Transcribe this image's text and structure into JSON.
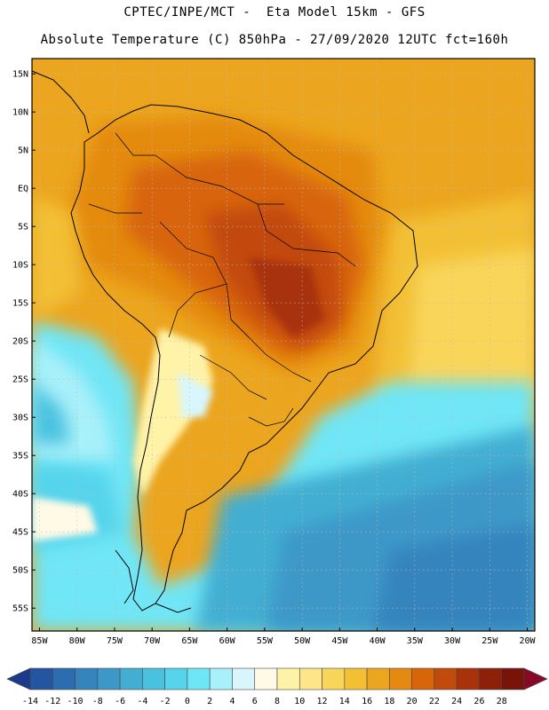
{
  "header": {
    "line1": "CPTEC/INPE/MCT -  Eta Model 15km - GFS",
    "line2": "Absolute Temperature (C) 850hPa - 27/09/2020 12UTC fct=160h"
  },
  "map": {
    "region": "South America",
    "lon_range": [
      -86,
      -19
    ],
    "lat_range": [
      17,
      -58
    ],
    "lat_ticks": [
      "15N",
      "10N",
      "5N",
      "EQ",
      "5S",
      "10S",
      "15S",
      "20S",
      "25S",
      "30S",
      "35S",
      "40S",
      "45S",
      "50S",
      "55S"
    ],
    "lon_ticks": [
      "85W",
      "80W",
      "75W",
      "70W",
      "65W",
      "60W",
      "55W",
      "50W",
      "45W",
      "40W",
      "35W",
      "30W",
      "25W",
      "20W"
    ],
    "gridlines": "dotted",
    "colors": {
      "ocean_cold": "#49c8e6",
      "ocean_deep": "#3286c0",
      "warm": "#e8a012",
      "hot": "#c8560c"
    }
  },
  "colorbar": {
    "labels": [
      "-14",
      "-12",
      "-10",
      "-8",
      "-6",
      "-4",
      "-2",
      "0",
      "2",
      "4",
      "6",
      "8",
      "10",
      "12",
      "14",
      "16",
      "18",
      "20",
      "22",
      "24",
      "26",
      "28"
    ],
    "colors": [
      "#1c3a8c",
      "#2455a0",
      "#2c6cb0",
      "#3684be",
      "#3d98c8",
      "#43aed2",
      "#49c2e0",
      "#55d4ec",
      "#6fe6f6",
      "#a8f0fa",
      "#d8f6fc",
      "#fffae6",
      "#fff3a8",
      "#fde68a",
      "#f9d55a",
      "#f3c034",
      "#eca51e",
      "#e48a10",
      "#d8650a",
      "#c24a0a",
      "#a8320a",
      "#8c2008",
      "#781408",
      "#880828"
    ]
  }
}
